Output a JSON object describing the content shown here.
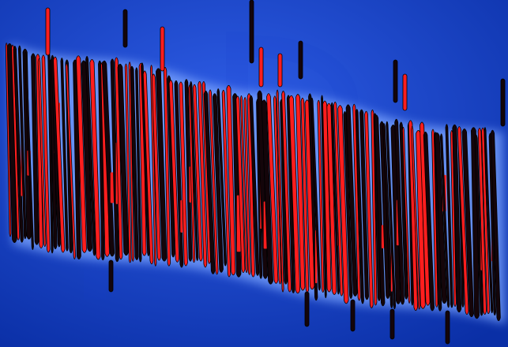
{
  "scene": {
    "background_color": "#0a2fa6",
    "background_highlight": "#2f5ee8",
    "glow_color": "#7fa7ff",
    "stripe_red": "#ff1e1e",
    "stripe_dark": "#14050a",
    "stripe_outline": "#000000"
  }
}
